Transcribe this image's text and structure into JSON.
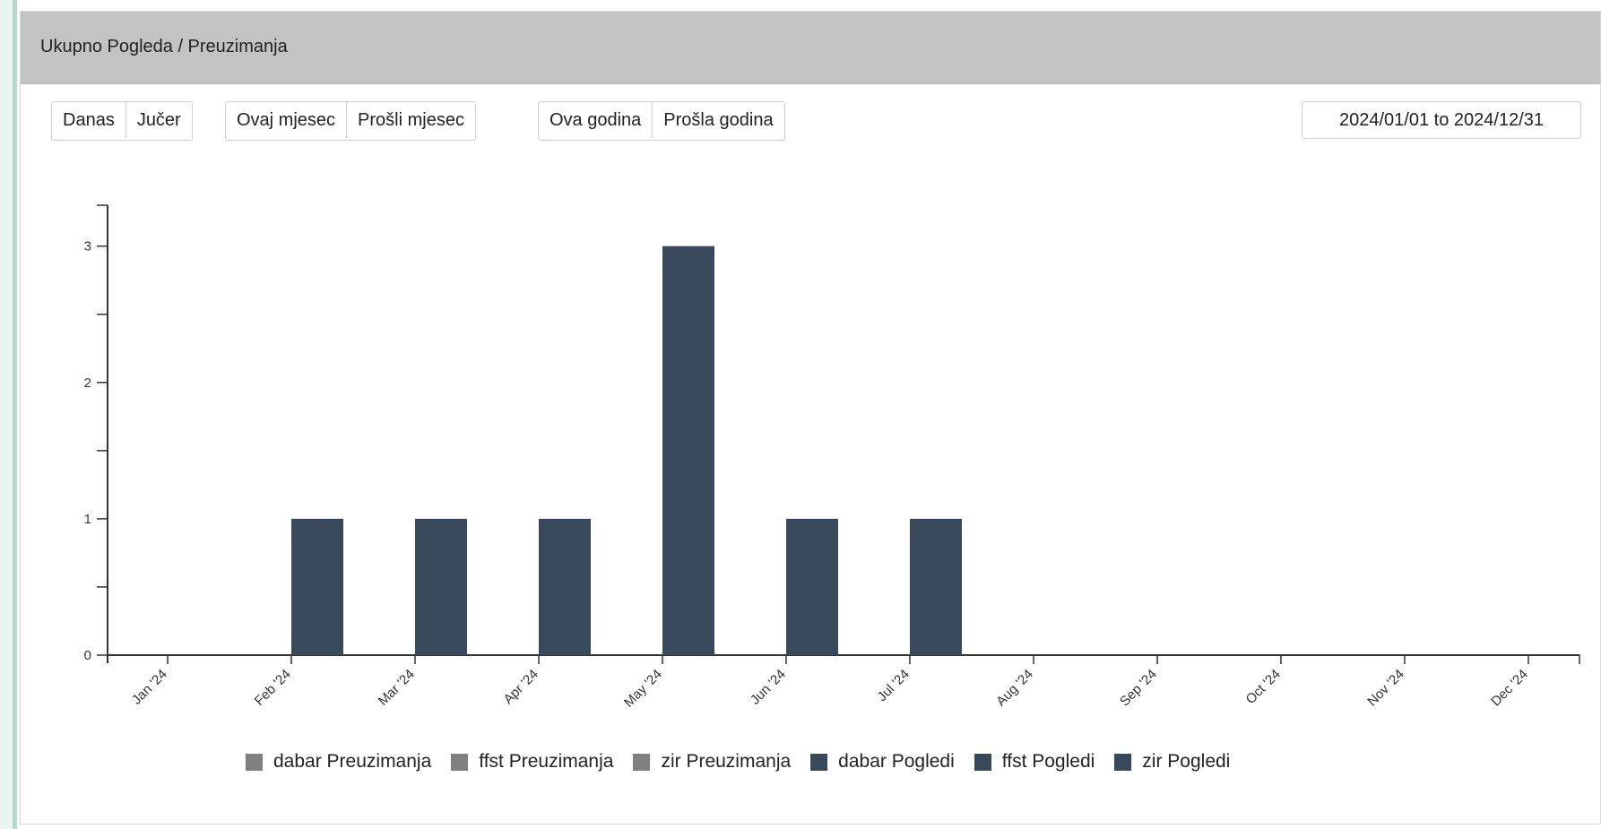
{
  "header": {
    "title": "Ukupno Pogleda / Preuzimanja"
  },
  "filters": {
    "group1": [
      "Danas",
      "Jučer"
    ],
    "group2": [
      "Ovaj mjesec",
      "Prošli mjesec"
    ],
    "group3": [
      "Ova godina",
      "Prošla godina"
    ],
    "date_range": "2024/01/01 to 2024/12/31"
  },
  "colors": {
    "downloads": "#808080",
    "views": "#37495a"
  },
  "chart_data": {
    "type": "bar",
    "categories": [
      "Jan '24",
      "Feb '24",
      "Mar '24",
      "Apr '24",
      "May '24",
      "Jun '24",
      "Jul '24",
      "Aug '24",
      "Sep '24",
      "Oct '24",
      "Nov '24",
      "Dec '24"
    ],
    "values": [
      0,
      1,
      1,
      1,
      3,
      1,
      1,
      0,
      0,
      0,
      0,
      0
    ],
    "y_ticks": [
      0,
      1,
      2,
      3
    ],
    "ylim": [
      0,
      3.3
    ],
    "legend_position": "bottom",
    "legend": [
      {
        "name": "dabar Preuzimanja",
        "color": "#808080"
      },
      {
        "name": "ffst Preuzimanja",
        "color": "#808080"
      },
      {
        "name": "zir Preuzimanja",
        "color": "#808080"
      },
      {
        "name": "dabar Pogledi",
        "color": "#37495a"
      },
      {
        "name": "ffst Pogledi",
        "color": "#37495a"
      },
      {
        "name": "zir Pogledi",
        "color": "#37495a"
      }
    ]
  }
}
